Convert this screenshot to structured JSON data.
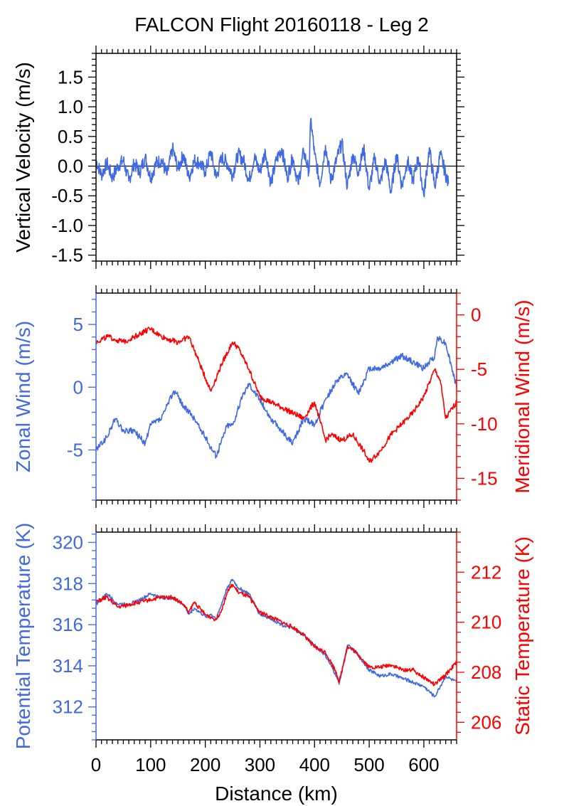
{
  "title": "FALCON Flight 20160118 - Leg 2",
  "colors": {
    "blue": "#4169e1",
    "red": "#ff0000",
    "axis": "#000000"
  },
  "chart_data": [
    {
      "type": "line",
      "panel": "top",
      "ylabel": "Vertical Velocity (m/s)",
      "xlim": [
        0,
        660
      ],
      "ylim": [
        -1.6,
        1.9
      ],
      "yticks": [
        -1.5,
        -1.0,
        -0.5,
        0.0,
        0.5,
        1.0,
        1.5
      ],
      "ytick_labels": [
        "-1.5",
        "-1.0",
        "-0.5",
        "0.0",
        "0.5",
        "1.0",
        "1.5"
      ],
      "zero_line": true,
      "series": [
        {
          "color": "#4169e1",
          "x": [
            0,
            10,
            20,
            30,
            40,
            50,
            60,
            70,
            80,
            90,
            100,
            110,
            120,
            130,
            140,
            150,
            160,
            170,
            180,
            190,
            200,
            210,
            220,
            230,
            240,
            250,
            260,
            270,
            280,
            290,
            300,
            310,
            320,
            330,
            340,
            350,
            360,
            370,
            380,
            390,
            393,
            400,
            410,
            420,
            430,
            440,
            450,
            460,
            470,
            480,
            490,
            500,
            510,
            520,
            530,
            540,
            550,
            560,
            570,
            580,
            590,
            600,
            610,
            620,
            630,
            645
          ],
          "values": [
            0.1,
            -0.15,
            0.05,
            -0.2,
            0.0,
            0.1,
            -0.25,
            0.05,
            -0.1,
            0.15,
            -0.2,
            0.05,
            0.1,
            -0.15,
            0.3,
            -0.05,
            0.2,
            -0.2,
            0.1,
            0.05,
            -0.1,
            0.25,
            -0.2,
            0.15,
            0.05,
            -0.15,
            0.2,
            0.1,
            -0.25,
            0.15,
            -0.1,
            0.25,
            -0.3,
            0.1,
            0.3,
            -0.2,
            0.15,
            -0.3,
            0.25,
            -0.1,
            0.8,
            0.2,
            -0.3,
            0.35,
            -0.25,
            0.1,
            0.4,
            -0.35,
            0.2,
            -0.1,
            0.3,
            -0.4,
            0.15,
            -0.3,
            0.1,
            -0.45,
            0.2,
            -0.35,
            0.1,
            -0.25,
            0.15,
            -0.5,
            0.3,
            -0.35,
            0.2,
            -0.3
          ]
        }
      ]
    },
    {
      "type": "line",
      "panel": "middle",
      "ylabel": "Zonal Wind (m/s)",
      "ylabel_right": "Meridional Wind (m/s)",
      "xlim": [
        0,
        660
      ],
      "ylim": [
        -9,
        7.5
      ],
      "yticks": [
        -5,
        0,
        5
      ],
      "ytick_labels": [
        "-5",
        "0",
        "5"
      ],
      "ylim_right": [
        -17,
        2
      ],
      "yticks_right": [
        -15,
        -10,
        -5,
        0
      ],
      "ytick_labels_right": [
        "-15",
        "-10",
        "-5",
        "0"
      ],
      "series": [
        {
          "color": "#4169e1",
          "axis": "left",
          "x": [
            0,
            20,
            35,
            50,
            70,
            90,
            100,
            120,
            140,
            145,
            160,
            180,
            200,
            220,
            240,
            250,
            270,
            280,
            300,
            320,
            340,
            360,
            380,
            400,
            420,
            440,
            460,
            480,
            500,
            520,
            540,
            560,
            580,
            600,
            620,
            625,
            640,
            660
          ],
          "values": [
            -5.0,
            -4.0,
            -2.5,
            -3.5,
            -3.5,
            -4.5,
            -3.0,
            -2.5,
            -0.5,
            -0.3,
            -1.5,
            -2.5,
            -4.0,
            -5.5,
            -3.0,
            -3.0,
            -0.5,
            0.3,
            -1.0,
            -2.5,
            -3.5,
            -4.5,
            -2.5,
            -3.0,
            -1.0,
            0.5,
            1.0,
            -0.5,
            1.5,
            1.5,
            2.0,
            2.5,
            2.0,
            1.5,
            2.5,
            4.0,
            3.5,
            0.0
          ]
        },
        {
          "color": "#ff0000",
          "axis": "right",
          "x": [
            0,
            20,
            50,
            70,
            90,
            100,
            120,
            150,
            170,
            190,
            210,
            230,
            250,
            260,
            270,
            280,
            300,
            320,
            340,
            360,
            380,
            400,
            420,
            430,
            450,
            470,
            490,
            500,
            520,
            540,
            560,
            580,
            600,
            620,
            630,
            640,
            660
          ],
          "values": [
            -2.5,
            -2.0,
            -2.5,
            -2.0,
            -1.5,
            -1.3,
            -2.0,
            -2.5,
            -2.0,
            -4.5,
            -7.0,
            -4.5,
            -2.5,
            -3.0,
            -4.0,
            -5.0,
            -7.5,
            -8.0,
            -8.5,
            -9.0,
            -9.5,
            -8.0,
            -11.5,
            -11.0,
            -11.5,
            -11.0,
            -12.5,
            -13.5,
            -12.5,
            -11.0,
            -10.0,
            -9.0,
            -7.5,
            -5.0,
            -6.0,
            -9.5,
            -8.0
          ]
        }
      ]
    },
    {
      "type": "line",
      "panel": "bottom",
      "ylabel": "Potential Temperature (K)",
      "ylabel_right": "Static Temperature (K)",
      "xlabel": "Distance (km)",
      "xlim": [
        0,
        660
      ],
      "xticks": [
        0,
        100,
        200,
        300,
        400,
        500,
        600
      ],
      "xtick_labels": [
        "0",
        "100",
        "200",
        "300",
        "400",
        "500",
        "600"
      ],
      "ylim": [
        310.4,
        320.5
      ],
      "yticks": [
        312,
        314,
        316,
        318,
        320
      ],
      "ytick_labels": [
        "312",
        "314",
        "316",
        "318",
        "320"
      ],
      "ylim_right": [
        205.3,
        213.6
      ],
      "yticks_right": [
        206,
        208,
        210,
        212
      ],
      "ytick_labels_right": [
        "206",
        "208",
        "210",
        "212"
      ],
      "series": [
        {
          "color": "#4169e1",
          "axis": "left",
          "x": [
            0,
            20,
            40,
            60,
            80,
            100,
            120,
            140,
            160,
            170,
            180,
            200,
            210,
            220,
            230,
            240,
            250,
            260,
            280,
            300,
            320,
            340,
            360,
            380,
            400,
            420,
            440,
            445,
            460,
            470,
            480,
            500,
            520,
            540,
            560,
            580,
            600,
            620,
            640,
            660
          ],
          "values": [
            317.0,
            317.5,
            317.0,
            317.0,
            317.2,
            317.5,
            317.3,
            317.3,
            317.0,
            316.5,
            316.8,
            316.4,
            316.5,
            316.3,
            317.0,
            317.8,
            318.2,
            317.8,
            317.5,
            316.5,
            316.3,
            316.0,
            315.8,
            315.5,
            315.0,
            314.5,
            313.5,
            313.1,
            315.0,
            314.8,
            314.5,
            313.8,
            313.5,
            313.6,
            313.4,
            313.2,
            313.0,
            312.5,
            313.5,
            313.2
          ]
        },
        {
          "color": "#ff0000",
          "axis": "right",
          "x": [
            0,
            20,
            40,
            60,
            80,
            100,
            120,
            140,
            160,
            170,
            180,
            200,
            210,
            220,
            230,
            240,
            250,
            260,
            280,
            300,
            320,
            340,
            360,
            380,
            400,
            420,
            440,
            445,
            460,
            470,
            480,
            500,
            520,
            540,
            560,
            580,
            600,
            620,
            640,
            660
          ],
          "values": [
            210.8,
            211.0,
            210.6,
            210.7,
            210.8,
            210.9,
            211.0,
            211.0,
            210.7,
            210.4,
            210.8,
            210.3,
            210.2,
            210.1,
            210.5,
            211.2,
            211.5,
            211.2,
            211.0,
            210.4,
            210.2,
            210.0,
            209.8,
            209.5,
            209.0,
            208.8,
            208.0,
            207.6,
            209.0,
            208.9,
            208.7,
            208.2,
            208.2,
            208.3,
            208.1,
            208.1,
            207.8,
            207.5,
            207.9,
            208.4
          ]
        }
      ]
    }
  ]
}
